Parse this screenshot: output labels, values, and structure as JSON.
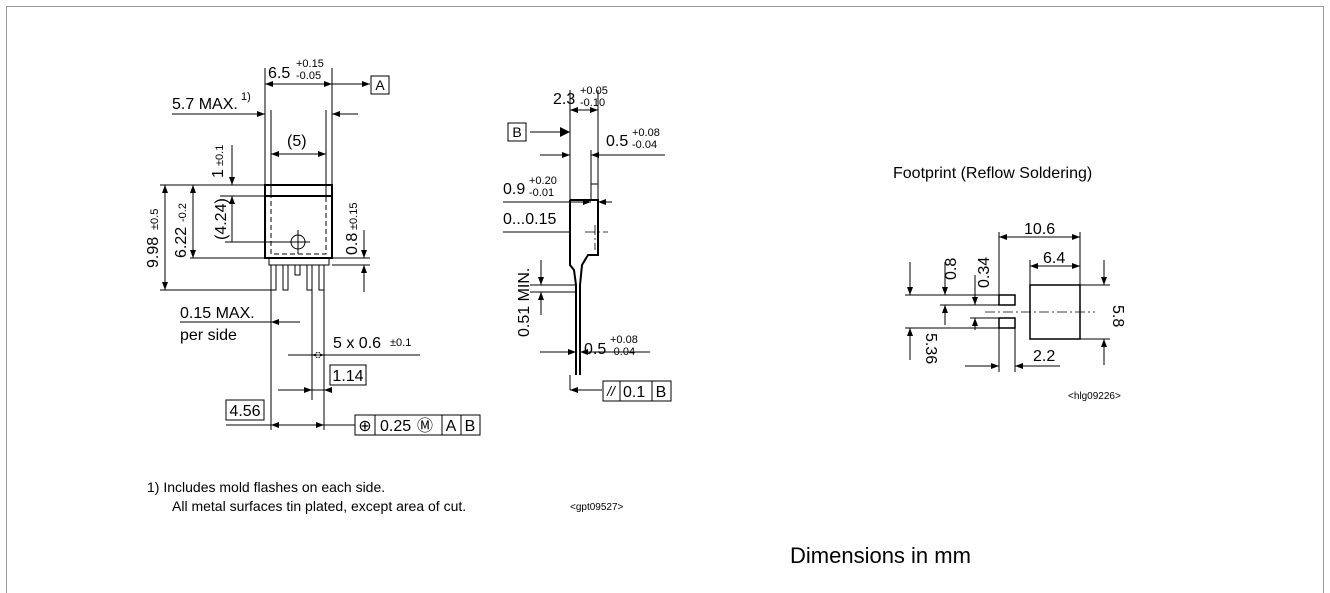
{
  "front_view": {
    "width": "6.5",
    "width_tol_plus": "+0.15",
    "width_tol_minus": "-0.05",
    "datum_a": "A",
    "max_width": "5.7 MAX.",
    "max_width_note": "1)",
    "tab_width": "(5)",
    "tab_height": "1",
    "tab_height_tol": "±0.1",
    "overall_height": "9.98",
    "overall_height_tol": "±0.5",
    "body_height": "6.22",
    "body_height_tol": "-0.2",
    "hole_height": "(4.24)",
    "lead_height": "0.8",
    "lead_height_tol": "±0.15",
    "lead_offset": "0.15 MAX.",
    "lead_offset_note": "per side",
    "lead_width": "5 x 0.6",
    "lead_width_tol": "±0.1",
    "pitch": "1.14",
    "span": "4.56",
    "position_frame": [
      "⊕",
      "0.25",
      "Ⓜ",
      "A",
      "B"
    ]
  },
  "side_view": {
    "thickness": "2.3",
    "thickness_tol_plus": "+0.05",
    "thickness_tol_minus": "-0.10",
    "datum_b": "B",
    "tab_thickness": "0.5",
    "tab_thickness_tol_plus": "+0.08",
    "tab_thickness_tol_minus": "-0.04",
    "standoff": "0.9",
    "standoff_tol_plus": "+0.20",
    "standoff_tol_minus": "-0.01",
    "seating": "0...0.15",
    "lead_length": "0.51 MIN.",
    "lead_thickness": "0.5",
    "lead_thickness_tol_plus": "+0.08",
    "lead_thickness_tol_minus": "-0.04",
    "parallelism_frame": [
      "//",
      "0.1",
      "B"
    ]
  },
  "notes": [
    "1) Includes mold flashes on each side.",
    "All metal surfaces tin plated, except area of cut."
  ],
  "drawing_id": "<gpt09527>",
  "footprint": {
    "title": "Footprint (Reflow Soldering)",
    "overall": "10.6",
    "pad_width": "6.4",
    "lead_pad": "0.8",
    "gap": "0.34",
    "lead_span": "5.36",
    "pad_height": "5.8",
    "lead_pad_len": "2.2",
    "drawing_id": "<hlg09226>"
  },
  "units_note": "Dimensions in mm"
}
